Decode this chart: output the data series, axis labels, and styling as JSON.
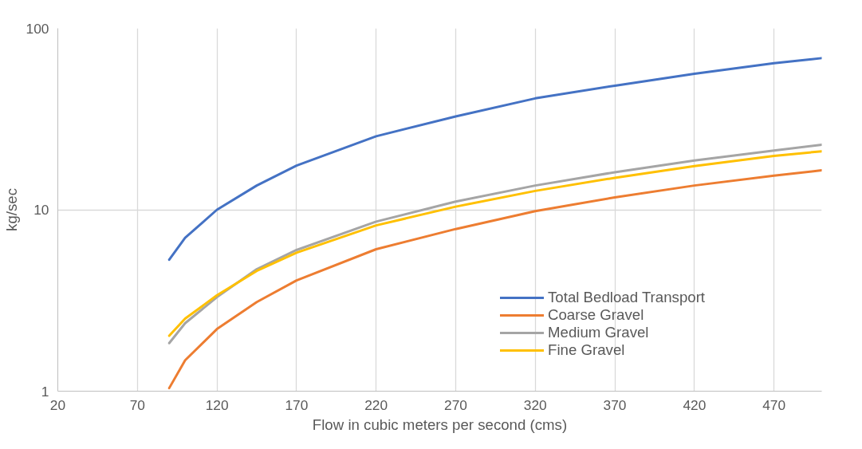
{
  "chart_data": {
    "type": "line",
    "xlabel": "Flow in cubic meters per second (cms)",
    "ylabel": "kg/sec",
    "x": [
      90,
      100,
      120,
      145,
      170,
      220,
      270,
      320,
      370,
      420,
      470,
      500
    ],
    "series": [
      {
        "name": "Total Bedload Transport",
        "color": "#4472c4",
        "values": [
          5.3,
          7.0,
          10,
          13.6,
          17.5,
          25.4,
          32.7,
          41.1,
          48.3,
          56.2,
          64.2,
          68.5
        ]
      },
      {
        "name": "Coarse Gravel",
        "color": "#ed7d31",
        "values": [
          1.04,
          1.48,
          2.2,
          3.1,
          4.08,
          6.06,
          7.83,
          9.83,
          11.7,
          13.6,
          15.4,
          16.5
        ]
      },
      {
        "name": "Medium Gravel",
        "color": "#a5a5a5",
        "values": [
          1.84,
          2.37,
          3.3,
          4.7,
          6.0,
          8.6,
          11.1,
          13.6,
          16.1,
          18.7,
          21.2,
          22.8
        ]
      },
      {
        "name": "Fine Gravel",
        "color": "#ffc000",
        "values": [
          2.02,
          2.51,
          3.38,
          4.6,
          5.8,
          8.2,
          10.4,
          12.7,
          15.0,
          17.4,
          19.8,
          21.0
        ]
      }
    ],
    "xlim": [
      20,
      500
    ],
    "xticks": [
      20,
      70,
      120,
      170,
      220,
      270,
      320,
      370,
      420,
      470
    ],
    "ylim": [
      1,
      100
    ],
    "yticks": [
      1,
      10,
      100
    ],
    "log": "y",
    "grid": true,
    "legend": "right",
    "marker": "none",
    "line_style": "solid"
  }
}
